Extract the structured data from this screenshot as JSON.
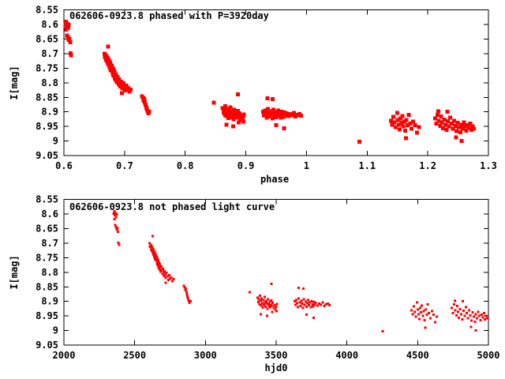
{
  "window": {
    "background": "#ffffff",
    "foreground": "#000000"
  },
  "chart_data": [
    {
      "type": "scatter",
      "title": "062606-0923.8 phased with P=3920day",
      "xlabel": "phase",
      "ylabel": "I[mag]",
      "xlim": [
        0.6,
        1.3
      ],
      "ylim": [
        9.05,
        8.55
      ],
      "y_axis_inverted": true,
      "grid": false,
      "legend": "none",
      "xticks": [
        [
          0.6,
          "0.6"
        ],
        [
          0.7,
          "0.7"
        ],
        [
          0.8,
          "0.8"
        ],
        [
          0.9,
          "0.9"
        ],
        [
          1,
          "1"
        ],
        [
          1.1,
          "1.1"
        ],
        [
          1.2,
          "1.2"
        ],
        [
          1.3,
          "1.3"
        ]
      ],
      "yticks": [
        [
          8.55,
          "8.55"
        ],
        [
          8.6,
          "8.6"
        ],
        [
          8.65,
          "8.65"
        ],
        [
          8.7,
          "8.7"
        ],
        [
          8.75,
          "8.75"
        ],
        [
          8.8,
          "8.8"
        ],
        [
          8.85,
          "8.85"
        ],
        [
          8.9,
          "8.9"
        ],
        [
          8.95,
          "8.95"
        ],
        [
          9,
          "9"
        ],
        [
          9.05,
          "9.05"
        ]
      ],
      "marker": "filled-square",
      "marker_size": 5,
      "color": "#ff0000",
      "x_source": "phase_of_hjd",
      "phase": {
        "period_day": 3920,
        "epoch_offset_day": 9.9
      }
    },
    {
      "type": "scatter",
      "title": "062606-0923.8 not phased light curve",
      "xlabel": "hjd0",
      "ylabel": "I[mag]",
      "xlim": [
        2000,
        5000
      ],
      "ylim": [
        9.05,
        8.55
      ],
      "y_axis_inverted": true,
      "grid": false,
      "legend": "none",
      "xticks": [
        [
          2000,
          "2000"
        ],
        [
          2500,
          "2500"
        ],
        [
          3000,
          "3000"
        ],
        [
          3500,
          "3500"
        ],
        [
          4000,
          "4000"
        ],
        [
          4500,
          "4500"
        ],
        [
          5000,
          "5000"
        ]
      ],
      "yticks": [
        [
          8.55,
          "8.55"
        ],
        [
          8.6,
          "8.6"
        ],
        [
          8.65,
          "8.65"
        ],
        [
          8.7,
          "8.7"
        ],
        [
          8.75,
          "8.75"
        ],
        [
          8.8,
          "8.8"
        ],
        [
          8.85,
          "8.85"
        ],
        [
          8.9,
          "8.9"
        ],
        [
          8.95,
          "8.95"
        ],
        [
          9,
          "9"
        ],
        [
          9.05,
          "9.05"
        ]
      ],
      "marker": "filled-square",
      "marker_size": 3,
      "color": "#ff0000",
      "x_source": "hjd"
    }
  ],
  "observations": [
    [
      2352,
      8.598
    ],
    [
      2356,
      8.59
    ],
    [
      2360,
      8.604
    ],
    [
      2365,
      8.597
    ],
    [
      2369,
      8.611
    ],
    [
      2373,
      8.601
    ],
    [
      2357,
      8.617
    ],
    [
      2362,
      8.637
    ],
    [
      2368,
      8.645
    ],
    [
      2373,
      8.653
    ],
    [
      2379,
      8.648
    ],
    [
      2382,
      8.661
    ],
    [
      2386,
      8.698
    ],
    [
      2389,
      8.705
    ],
    [
      2604,
      8.7
    ],
    [
      2608,
      8.712
    ],
    [
      2612,
      8.705
    ],
    [
      2616,
      8.722
    ],
    [
      2618,
      8.71
    ],
    [
      2622,
      8.726
    ],
    [
      2624,
      8.715
    ],
    [
      2626,
      8.733
    ],
    [
      2628,
      8.676
    ],
    [
      2630,
      8.728
    ],
    [
      2632,
      8.74
    ],
    [
      2634,
      8.722
    ],
    [
      2636,
      8.736
    ],
    [
      2638,
      8.748
    ],
    [
      2640,
      8.73
    ],
    [
      2642,
      8.744
    ],
    [
      2644,
      8.756
    ],
    [
      2646,
      8.738
    ],
    [
      2648,
      8.75
    ],
    [
      2650,
      8.742
    ],
    [
      2652,
      8.76
    ],
    [
      2654,
      8.746
    ],
    [
      2656,
      8.758
    ],
    [
      2658,
      8.77
    ],
    [
      2660,
      8.752
    ],
    [
      2662,
      8.764
    ],
    [
      2664,
      8.776
    ],
    [
      2666,
      8.758
    ],
    [
      2668,
      8.772
    ],
    [
      2670,
      8.784
    ],
    [
      2672,
      8.766
    ],
    [
      2674,
      8.778
    ],
    [
      2676,
      8.79
    ],
    [
      2678,
      8.772
    ],
    [
      2680,
      8.786
    ],
    [
      2684,
      8.798
    ],
    [
      2688,
      8.78
    ],
    [
      2692,
      8.794
    ],
    [
      2696,
      8.806
    ],
    [
      2700,
      8.788
    ],
    [
      2704,
      8.8
    ],
    [
      2708,
      8.812
    ],
    [
      2712,
      8.796
    ],
    [
      2716,
      8.808
    ],
    [
      2718,
      8.836
    ],
    [
      2720,
      8.82
    ],
    [
      2726,
      8.802
    ],
    [
      2732,
      8.814
    ],
    [
      2738,
      8.826
    ],
    [
      2744,
      8.81
    ],
    [
      2750,
      8.822
    ],
    [
      2758,
      8.818
    ],
    [
      2766,
      8.83
    ],
    [
      2774,
      8.824
    ],
    [
      2848,
      8.846
    ],
    [
      2854,
      8.852
    ],
    [
      2858,
      8.861
    ],
    [
      2862,
      8.856
    ],
    [
      2866,
      8.868
    ],
    [
      2870,
      8.877
    ],
    [
      2874,
      8.885
    ],
    [
      2878,
      8.89
    ],
    [
      2882,
      8.897
    ],
    [
      2888,
      8.905
    ],
    [
      2894,
      8.9
    ],
    [
      3312,
      8.868
    ],
    [
      3467,
      8.84
    ],
    [
      3368,
      8.887
    ],
    [
      3374,
      8.902
    ],
    [
      3378,
      8.893
    ],
    [
      3382,
      8.91
    ],
    [
      3386,
      8.88
    ],
    [
      3390,
      8.898
    ],
    [
      3394,
      8.915
    ],
    [
      3398,
      8.89
    ],
    [
      3402,
      8.906
    ],
    [
      3406,
      8.921
    ],
    [
      3410,
      8.896
    ],
    [
      3414,
      8.912
    ],
    [
      3418,
      8.884
    ],
    [
      3422,
      8.904
    ],
    [
      3426,
      8.918
    ],
    [
      3430,
      8.899
    ],
    [
      3434,
      8.908
    ],
    [
      3438,
      8.925
    ],
    [
      3442,
      8.893
    ],
    [
      3446,
      8.909
    ],
    [
      3450,
      8.916
    ],
    [
      3454,
      8.901
    ],
    [
      3458,
      8.92
    ],
    [
      3462,
      8.911
    ],
    [
      3466,
      8.897
    ],
    [
      3470,
      8.914
    ],
    [
      3476,
      8.905
    ],
    [
      3482,
      8.922
    ],
    [
      3488,
      8.913
    ],
    [
      3494,
      8.928
    ],
    [
      3500,
      8.918
    ],
    [
      3506,
      8.909
    ],
    [
      3392,
      8.944
    ],
    [
      3436,
      8.95
    ],
    [
      3472,
      8.936
    ],
    [
      3502,
      8.934
    ],
    [
      3658,
      8.853
    ],
    [
      3692,
      8.856
    ],
    [
      3630,
      8.9
    ],
    [
      3636,
      8.912
    ],
    [
      3642,
      8.895
    ],
    [
      3648,
      8.906
    ],
    [
      3654,
      8.92
    ],
    [
      3660,
      8.89
    ],
    [
      3666,
      8.903
    ],
    [
      3672,
      8.916
    ],
    [
      3678,
      8.898
    ],
    [
      3684,
      8.908
    ],
    [
      3690,
      8.922
    ],
    [
      3696,
      8.893
    ],
    [
      3702,
      8.911
    ],
    [
      3708,
      8.901
    ],
    [
      3714,
      8.918
    ],
    [
      3720,
      8.906
    ],
    [
      3726,
      8.895
    ],
    [
      3732,
      8.913
    ],
    [
      3738,
      8.904
    ],
    [
      3744,
      8.92
    ],
    [
      3750,
      8.899
    ],
    [
      3756,
      8.91
    ],
    [
      3762,
      8.917
    ],
    [
      3768,
      8.902
    ],
    [
      3774,
      8.912
    ],
    [
      3780,
      8.905
    ],
    [
      3792,
      8.915
    ],
    [
      3804,
      8.908
    ],
    [
      3816,
      8.912
    ],
    [
      3828,
      8.904
    ],
    [
      3840,
      8.916
    ],
    [
      3852,
      8.91
    ],
    [
      3864,
      8.907
    ],
    [
      3876,
      8.913
    ],
    [
      3714,
      8.945
    ],
    [
      3766,
      8.956
    ],
    [
      4253,
      9.002
    ],
    [
      4456,
      8.93
    ],
    [
      4464,
      8.944
    ],
    [
      4472,
      8.917
    ],
    [
      4480,
      8.936
    ],
    [
      4488,
      8.952
    ],
    [
      4496,
      8.904
    ],
    [
      4500,
      8.928
    ],
    [
      4506,
      8.944
    ],
    [
      4512,
      8.96
    ],
    [
      4518,
      8.922
    ],
    [
      4524,
      8.938
    ],
    [
      4530,
      8.914
    ],
    [
      4536,
      8.95
    ],
    [
      4542,
      8.933
    ],
    [
      4548,
      8.964
    ],
    [
      4554,
      8.99
    ],
    [
      4556,
      8.928
    ],
    [
      4564,
      8.946
    ],
    [
      4572,
      8.91
    ],
    [
      4580,
      8.94
    ],
    [
      4590,
      8.958
    ],
    [
      4600,
      8.934
    ],
    [
      4612,
      8.946
    ],
    [
      4624,
      8.972
    ],
    [
      4636,
      8.952
    ],
    [
      4742,
      8.922
    ],
    [
      4750,
      8.94
    ],
    [
      4758,
      8.91
    ],
    [
      4762,
      8.898
    ],
    [
      4766,
      8.93
    ],
    [
      4774,
      8.948
    ],
    [
      4780,
      8.916
    ],
    [
      4786,
      8.936
    ],
    [
      4792,
      8.956
    ],
    [
      4800,
      8.926
    ],
    [
      4808,
      8.944
    ],
    [
      4816,
      8.962
    ],
    [
      4820,
      8.9
    ],
    [
      4824,
      8.932
    ],
    [
      4832,
      8.95
    ],
    [
      4840,
      8.92
    ],
    [
      4848,
      8.94
    ],
    [
      4856,
      8.958
    ],
    [
      4864,
      8.93
    ],
    [
      4872,
      8.948
    ],
    [
      4876,
      8.988
    ],
    [
      4880,
      8.966
    ],
    [
      4888,
      8.938
    ],
    [
      4896,
      8.952
    ],
    [
      4904,
      8.97
    ],
    [
      4912,
      8.944
    ],
    [
      4912,
      9.0
    ],
    [
      4920,
      8.958
    ],
    [
      4928,
      8.936
    ],
    [
      4936,
      8.95
    ],
    [
      4944,
      8.964
    ],
    [
      4952,
      8.946
    ],
    [
      4960,
      8.955
    ],
    [
      4968,
      8.94
    ],
    [
      4976,
      8.962
    ],
    [
      4984,
      8.95
    ],
    [
      4992,
      8.958
    ]
  ]
}
